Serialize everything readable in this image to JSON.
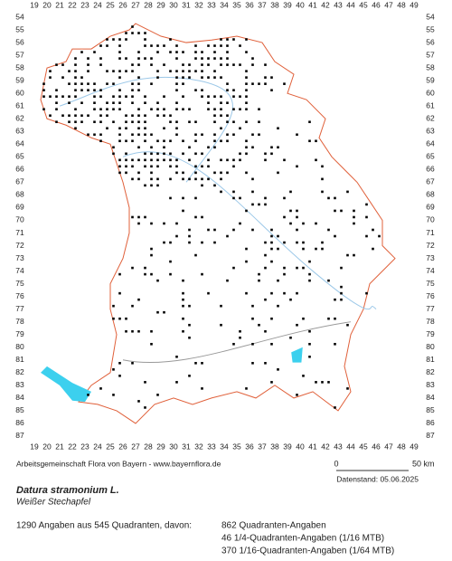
{
  "map": {
    "x_labels": [
      "19",
      "20",
      "21",
      "22",
      "23",
      "24",
      "25",
      "26",
      "27",
      "28",
      "29",
      "30",
      "31",
      "32",
      "33",
      "34",
      "35",
      "36",
      "37",
      "38",
      "39",
      "40",
      "41",
      "42",
      "43",
      "44",
      "45",
      "46",
      "47",
      "48",
      "49"
    ],
    "y_labels": [
      "54",
      "55",
      "56",
      "57",
      "58",
      "59",
      "60",
      "61",
      "62",
      "63",
      "64",
      "65",
      "66",
      "67",
      "68",
      "69",
      "70",
      "71",
      "72",
      "73",
      "74",
      "75",
      "76",
      "77",
      "78",
      "79",
      "80",
      "81",
      "82",
      "83",
      "84",
      "85",
      "86",
      "87"
    ],
    "scale": {
      "start": "0",
      "end": "50 km"
    }
  },
  "credit": "Arbeitsgemeinschaft Flora von Bayern - www.bayernflora.de",
  "date": "Datenstand: 05.06.2025",
  "species": {
    "name": "Datura stramonium L.",
    "common": "Weißer Stechapfel"
  },
  "stats": {
    "summary": "1290 Angaben aus 545 Quadranten, davon:",
    "lines": [
      "862 Quadranten-Angaben",
      "46 1/4-Quadranten-Angaben (1/16 MTB)",
      "370 1/16-Quadranten-Angaben (1/64 MTB)"
    ]
  }
}
